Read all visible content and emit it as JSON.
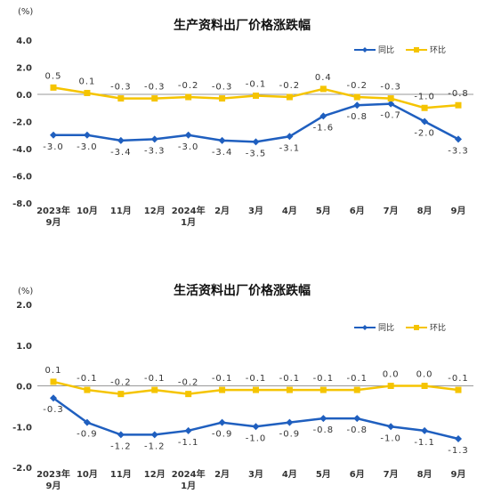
{
  "chart_data": [
    {
      "type": "line",
      "title": "生产资料出厂价格涨跌幅",
      "unit": "(%)",
      "categories": [
        "2023年\n9月",
        "10月",
        "11月",
        "12月",
        "2024年\n1月",
        "2月",
        "3月",
        "4月",
        "5月",
        "6月",
        "7月",
        "8月",
        "9月"
      ],
      "ylim": [
        -8.0,
        4.0
      ],
      "yticks": [
        "4.0",
        "2.0",
        "0.0",
        "-2.0",
        "-4.0",
        "-6.0",
        "-8.0"
      ],
      "ytick_values": [
        4.0,
        2.0,
        0.0,
        -2.0,
        -4.0,
        -6.0,
        -8.0
      ],
      "legend_position": "top-right",
      "series": [
        {
          "name": "同比",
          "color": "#1f5fbf",
          "marker": "diamond",
          "values": [
            -3.0,
            -3.0,
            -3.4,
            -3.3,
            -3.0,
            -3.4,
            -3.5,
            -3.1,
            -1.6,
            -0.8,
            -0.7,
            -2.0,
            -3.3
          ],
          "labels": [
            "-3.0",
            "-3.0",
            "-3.4",
            "-3.3",
            "-3.0",
            "-3.4",
            "-3.5",
            "-3.1",
            "-1.6",
            "-0.8",
            "-0.7",
            "-2.0",
            "-3.3"
          ]
        },
        {
          "name": "环比",
          "color": "#f5c400",
          "marker": "square",
          "values": [
            0.5,
            0.1,
            -0.3,
            -0.3,
            -0.2,
            -0.3,
            -0.1,
            -0.2,
            0.4,
            -0.2,
            -0.3,
            -1.0,
            -0.8
          ],
          "labels": [
            "0.5",
            "0.1",
            "-0.3",
            "-0.3",
            "-0.2",
            "-0.3",
            "-0.1",
            "-0.2",
            "0.4",
            "-0.2",
            "-0.3",
            "-1.0",
            "-0.8"
          ]
        }
      ]
    },
    {
      "type": "line",
      "title": "生活资料出厂价格涨跌幅",
      "unit": "(%)",
      "categories": [
        "2023年\n9月",
        "10月",
        "11月",
        "12月",
        "2024年\n1月",
        "2月",
        "3月",
        "4月",
        "5月",
        "6月",
        "7月",
        "8月",
        "9月"
      ],
      "ylim": [
        -2.0,
        2.0
      ],
      "yticks": [
        "2.0",
        "1.0",
        "0.0",
        "-1.0",
        "-2.0"
      ],
      "ytick_values": [
        2.0,
        1.0,
        0.0,
        -1.0,
        -2.0
      ],
      "legend_position": "top-right",
      "series": [
        {
          "name": "同比",
          "color": "#1f5fbf",
          "marker": "diamond",
          "values": [
            -0.3,
            -0.9,
            -1.2,
            -1.2,
            -1.1,
            -0.9,
            -1.0,
            -0.9,
            -0.8,
            -0.8,
            -1.0,
            -1.1,
            -1.3
          ],
          "labels": [
            "-0.3",
            "-0.9",
            "-1.2",
            "-1.2",
            "-1.1",
            "-0.9",
            "-1.0",
            "-0.9",
            "-0.8",
            "-0.8",
            "-1.0",
            "-1.1",
            "-1.3"
          ]
        },
        {
          "name": "环比",
          "color": "#f5c400",
          "marker": "square",
          "values": [
            0.1,
            -0.1,
            -0.2,
            -0.1,
            -0.2,
            -0.1,
            -0.1,
            -0.1,
            -0.1,
            -0.1,
            0.0,
            0.0,
            -0.1
          ],
          "labels": [
            "0.1",
            "-0.1",
            "-0.2",
            "-0.1",
            "-0.2",
            "-0.1",
            "-0.1",
            "-0.1",
            "-0.1",
            "-0.1",
            "0.0",
            "0.0",
            "-0.1"
          ]
        }
      ]
    }
  ]
}
